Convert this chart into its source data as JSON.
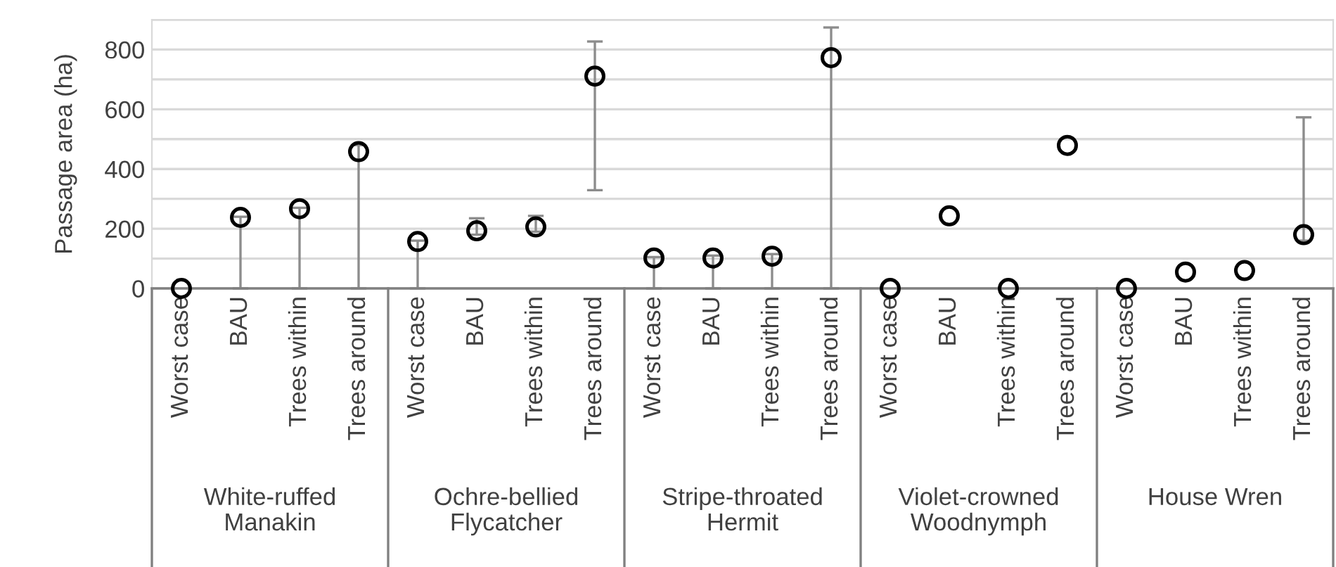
{
  "chart_data": {
    "type": "scatter",
    "ylabel": "Passage area (ha)",
    "categories": [
      "Worst case",
      "BAU",
      "Trees within",
      "Trees around",
      "Worst case",
      "BAU",
      "Trees within",
      "Trees around",
      "Worst case",
      "BAU",
      "Trees within",
      "Trees around",
      "Worst case",
      "BAU",
      "Trees within",
      "Trees around",
      "Worst case",
      "BAU",
      "Trees within",
      "Trees around"
    ],
    "values": [
      0,
      238,
      267,
      458,
      157,
      193,
      206,
      711,
      102,
      102,
      108,
      773,
      0,
      243,
      0,
      479,
      0,
      55,
      60,
      180
    ],
    "errors": [
      null,
      [
        0,
        240
      ],
      [
        0,
        270
      ],
      [
        0,
        480
      ],
      [
        0,
        160
      ],
      [
        180,
        235
      ],
      [
        190,
        243
      ],
      [
        329,
        827
      ],
      [
        0,
        105
      ],
      [
        0,
        110
      ],
      [
        0,
        115
      ],
      [
        0,
        874
      ],
      null,
      null,
      null,
      null,
      null,
      null,
      null,
      [
        160,
        573
      ]
    ],
    "color": "#000000",
    "marker": "circle",
    "annotations": [
      "White-ruffed\nManakin",
      "Ochre-bellied\nFlycatcher",
      "Stripe-throated\nHermit",
      "Violet-crowned\nWoodnymph",
      "House Wren"
    ],
    "ylim": [
      0,
      900
    ],
    "yticks": [
      0,
      {
        "value": 100,
        "label": null
      },
      200,
      {
        "value": 300,
        "label": null
      },
      400,
      {
        "value": 500,
        "label": null
      },
      600,
      {
        "value": 700,
        "label": null
      },
      800,
      {
        "value": 900,
        "label": null
      }
    ],
    "grid": "y",
    "legend": false
  }
}
